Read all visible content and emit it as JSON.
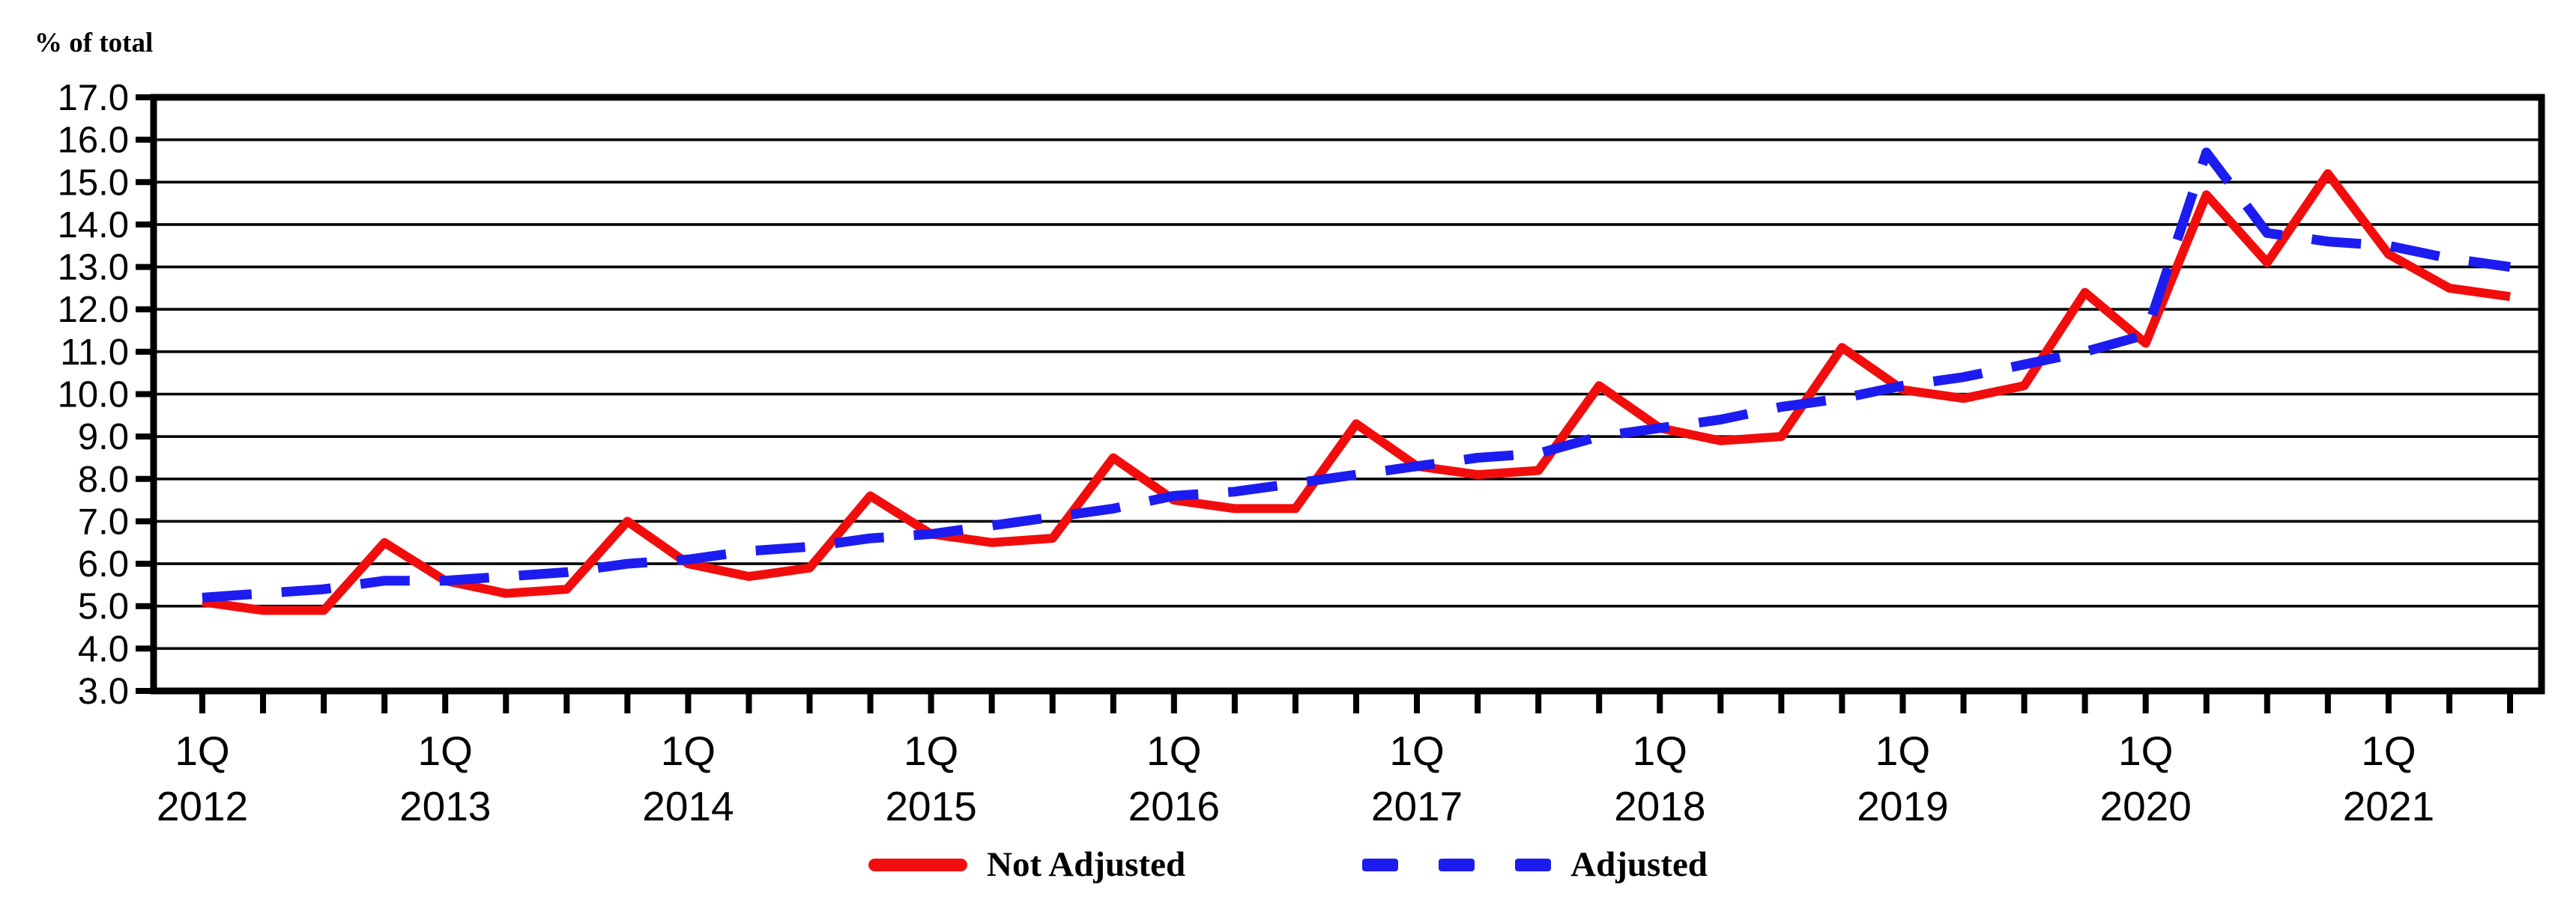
{
  "chart": {
    "y_axis_title": "% of total",
    "x_quarter_label": "1Q"
  },
  "legend": {
    "not_adjusted_label": "Not Adjusted",
    "adjusted_label": "Adjusted"
  },
  "colors": {
    "not_adjusted": "#f20d0d",
    "adjusted": "#1c1cf0",
    "axis": "#000000"
  },
  "chart_data": {
    "type": "line",
    "title": "",
    "xlabel": "",
    "ylabel": "% of total",
    "ylim": [
      3.0,
      17.0
    ],
    "ytick_step": 1.0,
    "ytick_labels": [
      "3.0",
      "4.0",
      "5.0",
      "6.0",
      "7.0",
      "8.0",
      "9.0",
      "10.0",
      "11.0",
      "12.0",
      "13.0",
      "14.0",
      "15.0",
      "16.0",
      "17.0"
    ],
    "grid": "horizontal",
    "legend_position": "bottom",
    "x": [
      "1Q 2012",
      "2Q 2012",
      "3Q 2012",
      "4Q 2012",
      "1Q 2013",
      "2Q 2013",
      "3Q 2013",
      "4Q 2013",
      "1Q 2014",
      "2Q 2014",
      "3Q 2014",
      "4Q 2014",
      "1Q 2015",
      "2Q 2015",
      "3Q 2015",
      "4Q 2015",
      "1Q 2016",
      "2Q 2016",
      "3Q 2016",
      "4Q 2016",
      "1Q 2017",
      "2Q 2017",
      "3Q 2017",
      "4Q 2017",
      "1Q 2018",
      "2Q 2018",
      "3Q 2018",
      "4Q 2018",
      "1Q 2019",
      "2Q 2019",
      "3Q 2019",
      "4Q 2019",
      "1Q 2020",
      "2Q 2020",
      "3Q 2020",
      "4Q 2020",
      "1Q 2021",
      "2Q 2021",
      "3Q 2021"
    ],
    "x_year_labels": [
      "2012",
      "2013",
      "2014",
      "2015",
      "2016",
      "2017",
      "2018",
      "2019",
      "2020",
      "2021"
    ],
    "series": [
      {
        "name": "Not Adjusted",
        "style": "solid",
        "color": "#f20d0d",
        "values": [
          5.1,
          4.9,
          4.9,
          6.5,
          5.6,
          5.3,
          5.4,
          7.0,
          6.0,
          5.7,
          5.9,
          7.6,
          6.7,
          6.5,
          6.6,
          8.5,
          7.5,
          7.3,
          7.3,
          9.3,
          8.3,
          8.1,
          8.2,
          10.2,
          9.2,
          8.9,
          9.0,
          11.1,
          10.1,
          9.9,
          10.2,
          12.4,
          11.2,
          14.7,
          13.1,
          15.2,
          13.3,
          12.5,
          12.3
        ]
      },
      {
        "name": "Adjusted",
        "style": "dashed",
        "color": "#1c1cf0",
        "values": [
          5.2,
          5.3,
          5.4,
          5.6,
          5.6,
          5.7,
          5.8,
          6.0,
          6.1,
          6.3,
          6.4,
          6.6,
          6.7,
          6.9,
          7.1,
          7.3,
          7.6,
          7.7,
          7.9,
          8.1,
          8.3,
          8.5,
          8.6,
          9.0,
          9.2,
          9.4,
          9.7,
          9.9,
          10.2,
          10.4,
          10.7,
          11.0,
          11.4,
          15.7,
          13.8,
          13.6,
          13.5,
          13.2,
          13.0
        ]
      }
    ]
  }
}
